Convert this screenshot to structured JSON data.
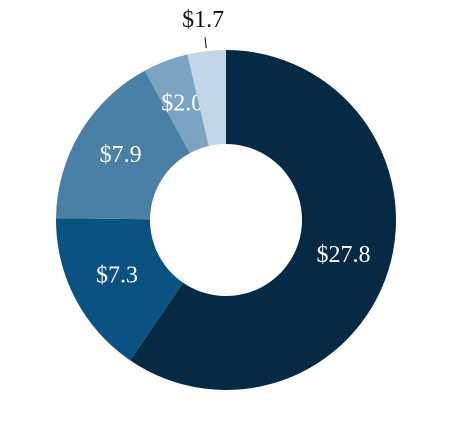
{
  "chart_data": {
    "type": "donut",
    "values": [
      27.8,
      7.3,
      7.9,
      2.0,
      1.7
    ],
    "value_labels": [
      "$27.8",
      "$7.3",
      "$7.9",
      "$2.0",
      "$1.7"
    ],
    "colors": [
      "#062a45",
      "#0a5282",
      "#4a7fa6",
      "#7ba4c4",
      "#c3d6e8"
    ]
  }
}
